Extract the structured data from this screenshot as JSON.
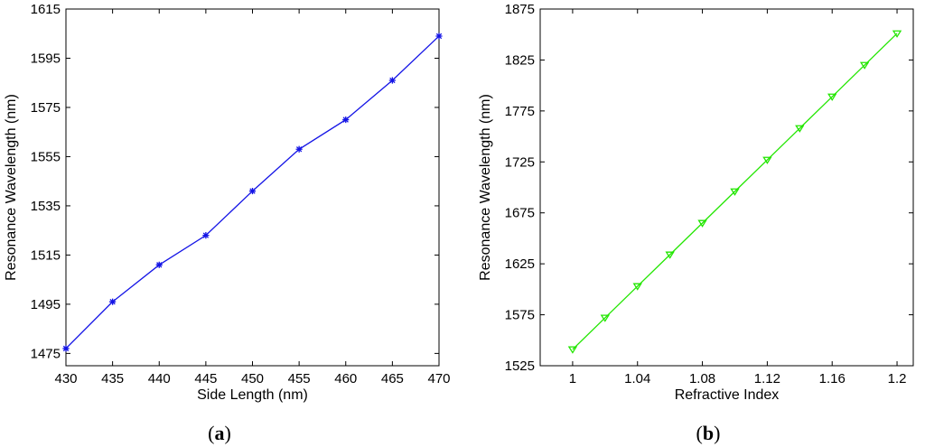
{
  "chart_data": [
    {
      "type": "line",
      "caption_letter": "a",
      "xlabel": "Side Length (nm)",
      "ylabel": "Resonance Wavelength (nm)",
      "xlim": [
        430,
        470
      ],
      "ylim": [
        1470,
        1615
      ],
      "xticks": [
        430,
        435,
        440,
        445,
        450,
        455,
        460,
        465,
        470
      ],
      "yticks": [
        1475,
        1495,
        1515,
        1535,
        1555,
        1575,
        1595,
        1615
      ],
      "grid": false,
      "series": [
        {
          "marker": "star",
          "color": "#1414e6",
          "x": [
            430,
            435,
            440,
            445,
            450,
            455,
            460,
            465,
            470
          ],
          "y": [
            1477,
            1496,
            1511,
            1523,
            1541,
            1558,
            1570,
            1586,
            1604
          ]
        }
      ]
    },
    {
      "type": "line",
      "caption_letter": "b",
      "xlabel": "Refractive Index",
      "ylabel": "Resonance Wavelength (nm)",
      "xlim": [
        0.98,
        1.21
      ],
      "ylim": [
        1525,
        1875
      ],
      "xticks": [
        1,
        1.04,
        1.08,
        1.12,
        1.16,
        1.2
      ],
      "xtick_labels": [
        "1",
        "1.04",
        "1.08",
        "1.12",
        "1.16",
        "1.2"
      ],
      "yticks": [
        1525,
        1575,
        1625,
        1675,
        1725,
        1775,
        1825,
        1875
      ],
      "grid": false,
      "series": [
        {
          "marker": "triangle-down",
          "color": "#22e600",
          "x": [
            1.0,
            1.02,
            1.04,
            1.06,
            1.08,
            1.1,
            1.12,
            1.14,
            1.16,
            1.18,
            1.2
          ],
          "y": [
            1541,
            1572,
            1603,
            1634,
            1665,
            1696,
            1727,
            1758,
            1789,
            1820,
            1851
          ]
        }
      ]
    }
  ]
}
